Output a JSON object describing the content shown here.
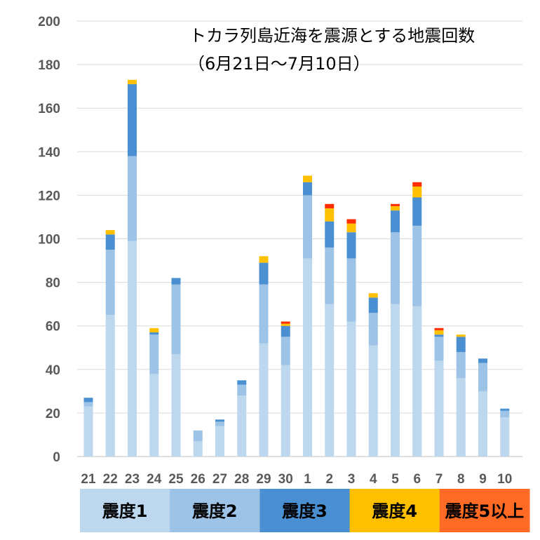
{
  "chart_data": {
    "type": "bar",
    "stacked": true,
    "title_line1": "トカラ列島近海を震源とする地震回数",
    "title_line2": "（6月21日～7月10日）",
    "categories": [
      "21",
      "22",
      "23",
      "24",
      "25",
      "26",
      "27",
      "28",
      "29",
      "30",
      "1",
      "2",
      "3",
      "4",
      "5",
      "6",
      "7",
      "8",
      "9",
      "10"
    ],
    "yticks": [
      "0",
      "20",
      "40",
      "60",
      "80",
      "100",
      "120",
      "140",
      "160",
      "180",
      "200"
    ],
    "ylim": [
      0,
      200
    ],
    "grid": true,
    "legend_position": "bottom",
    "series": [
      {
        "name": "震度1",
        "color": "#bdd7ee",
        "values": [
          23,
          65,
          99,
          38,
          47,
          7,
          14,
          28,
          52,
          42,
          91,
          70,
          62,
          51,
          70,
          69,
          44,
          36,
          30,
          18
        ]
      },
      {
        "name": "震度2",
        "color": "#9dc3e6",
        "values": [
          2,
          30,
          39,
          18,
          32,
          5,
          2,
          5,
          27,
          13,
          29,
          26,
          29,
          15,
          33,
          37,
          11,
          12,
          13,
          3
        ]
      },
      {
        "name": "震度3",
        "color": "#4a8fd2",
        "values": [
          2,
          7,
          33,
          1,
          3,
          0,
          1,
          2,
          10,
          5,
          6,
          12,
          12,
          7,
          10,
          13,
          1,
          7,
          2,
          1
        ]
      },
      {
        "name": "震度4",
        "color": "#ffc000",
        "values": [
          0,
          2,
          2,
          2,
          0,
          0,
          0,
          0,
          3,
          1,
          3,
          6,
          4,
          2,
          2,
          5,
          2,
          1,
          0,
          0
        ]
      },
      {
        "name": "震度5以上",
        "color": "#ff2d00",
        "values": [
          0,
          0,
          0,
          0,
          0,
          0,
          0,
          0,
          0,
          1,
          0,
          2,
          2,
          0,
          1,
          2,
          1,
          0,
          0,
          0
        ]
      }
    ],
    "legend_colors": [
      "#bdd7ee",
      "#9dc3e6",
      "#4a8fd2",
      "#ffc000",
      "#ff6a24"
    ]
  }
}
